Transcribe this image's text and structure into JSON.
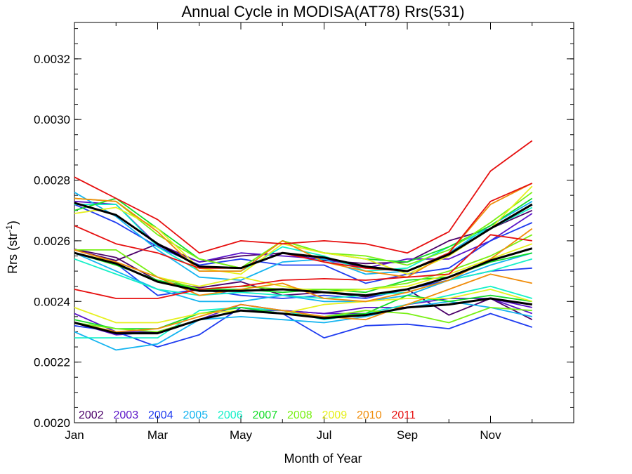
{
  "chart_data": {
    "type": "line",
    "title": "Annual Cycle in MODISA(AT78) Rrs(531)",
    "xlabel": "Month of Year",
    "ylabel_main": "Rrs (str",
    "ylabel_sup": "-1",
    "ylabel_close": ")",
    "xlim": [
      1,
      13
    ],
    "ylim": [
      0.002,
      0.00332
    ],
    "x_ticks": [
      {
        "value": 1,
        "label": "Jan"
      },
      {
        "value": 3,
        "label": "Mar"
      },
      {
        "value": 5,
        "label": "May"
      },
      {
        "value": 7,
        "label": "Jul"
      },
      {
        "value": 9,
        "label": "Sep"
      },
      {
        "value": 11,
        "label": "Nov"
      }
    ],
    "y_ticks": [
      {
        "value": 0.002,
        "label": "0.0020"
      },
      {
        "value": 0.0022,
        "label": "0.0022"
      },
      {
        "value": 0.0024,
        "label": "0.0024"
      },
      {
        "value": 0.0026,
        "label": "0.0026"
      },
      {
        "value": 0.0028,
        "label": "0.0028"
      },
      {
        "value": 0.003,
        "label": "0.0030"
      },
      {
        "value": 0.0032,
        "label": "0.0032"
      }
    ],
    "x": [
      1,
      2,
      3,
      4,
      5,
      6,
      7,
      8,
      9,
      10,
      11,
      12
    ],
    "legend": [
      {
        "label": "2002",
        "color": "#4b0069"
      },
      {
        "label": "2003",
        "color": "#5a14c8"
      },
      {
        "label": "2004",
        "color": "#1f3cf0"
      },
      {
        "label": "2005",
        "color": "#14b4f0"
      },
      {
        "label": "2006",
        "color": "#14f0c8"
      },
      {
        "label": "2007",
        "color": "#14dc28"
      },
      {
        "label": "2008",
        "color": "#78f014"
      },
      {
        "label": "2009",
        "color": "#e6f01e"
      },
      {
        "label": "2010",
        "color": "#f08c0a"
      },
      {
        "label": "2011",
        "color": "#e60f0f"
      }
    ],
    "series": [
      {
        "color": "#4b0069",
        "values": [
          0.002572,
          0.002545,
          0.002468,
          0.002445,
          0.002465,
          0.00242,
          0.00243,
          0.002415,
          0.00244,
          0.002355,
          0.00241,
          0.00234
        ]
      },
      {
        "color": "#4b0069",
        "values": [
          0.00257,
          0.002535,
          0.00259,
          0.00253,
          0.00255,
          0.00256,
          0.002535,
          0.002525,
          0.00253,
          0.0026,
          0.00264,
          0.0027
        ]
      },
      {
        "color": "#5a14c8",
        "values": [
          0.00236,
          0.0023,
          0.0023,
          0.00234,
          0.00237,
          0.00237,
          0.00236,
          0.00236,
          0.00239,
          0.00241,
          0.00241,
          0.00236
        ]
      },
      {
        "color": "#5a14c8",
        "values": [
          0.00273,
          0.00272,
          0.002585,
          0.00253,
          0.00256,
          0.00255,
          0.00254,
          0.00251,
          0.00254,
          0.00254,
          0.0026,
          0.00269
        ]
      },
      {
        "color": "#5a14c8",
        "values": [
          0.00233,
          0.00229,
          0.0023,
          0.00234,
          0.00239,
          0.00237,
          0.00236,
          0.00238,
          0.00238,
          0.00239,
          0.00241,
          0.00238
        ]
      },
      {
        "color": "#1f3cf0",
        "values": [
          0.00232,
          0.0023,
          0.00225,
          0.00229,
          0.00238,
          0.00236,
          0.00228,
          0.00232,
          0.002325,
          0.00231,
          0.00236,
          0.002315
        ]
      },
      {
        "color": "#1f3cf0",
        "values": [
          0.00256,
          0.002525,
          0.00242,
          0.00244,
          0.00242,
          0.00241,
          0.00242,
          0.00241,
          0.00244,
          0.00247,
          0.0025,
          0.00251
        ]
      },
      {
        "color": "#1f3cf0",
        "values": [
          0.00272,
          0.00266,
          0.00258,
          0.00252,
          0.00254,
          0.00252,
          0.00252,
          0.00246,
          0.00249,
          0.00251,
          0.0026,
          0.00266
        ]
      },
      {
        "color": "#14b4f0",
        "values": [
          0.0023,
          0.00224,
          0.00226,
          0.00234,
          0.00235,
          0.00234,
          0.00233,
          0.00235,
          0.00238,
          0.0024,
          0.00238,
          0.00235
        ]
      },
      {
        "color": "#14b4f0",
        "values": [
          0.00256,
          0.0025,
          0.00244,
          0.0024,
          0.0024,
          0.00242,
          0.0024,
          0.0024,
          0.00242,
          0.00247,
          0.00252,
          0.00256
        ]
      },
      {
        "color": "#14b4f0",
        "values": [
          0.00276,
          0.00268,
          0.00257,
          0.00248,
          0.00247,
          0.00253,
          0.00254,
          0.00249,
          0.0025,
          0.00256,
          0.00265,
          0.00273
        ]
      },
      {
        "color": "#14f0c8",
        "values": [
          0.00228,
          0.00228,
          0.00228,
          0.00237,
          0.00238,
          0.00237,
          0.00234,
          0.00236,
          0.00239,
          0.00242,
          0.00245,
          0.00241
        ]
      },
      {
        "color": "#14f0c8",
        "values": [
          0.00254,
          0.00249,
          0.00244,
          0.00242,
          0.00243,
          0.00242,
          0.00241,
          0.00242,
          0.00243,
          0.00247,
          0.0025,
          0.00254
        ]
      },
      {
        "color": "#14f0c8",
        "values": [
          0.00272,
          0.00272,
          0.00258,
          0.0025,
          0.0025,
          0.00258,
          0.00255,
          0.0025,
          0.00251,
          0.00258,
          0.00264,
          0.00271
        ]
      },
      {
        "color": "#14dc28",
        "values": [
          0.00234,
          0.00231,
          0.00231,
          0.00236,
          0.00238,
          0.00236,
          0.00235,
          0.00236,
          0.00242,
          0.0024,
          0.00242,
          0.0024
        ]
      },
      {
        "color": "#14dc28",
        "values": [
          0.00256,
          0.00252,
          0.00247,
          0.00244,
          0.00244,
          0.00243,
          0.00244,
          0.00243,
          0.00247,
          0.00248,
          0.00253,
          0.00256
        ]
      },
      {
        "color": "#14dc28",
        "values": [
          0.0027,
          0.00274,
          0.00264,
          0.00254,
          0.00251,
          0.0026,
          0.00256,
          0.00254,
          0.00253,
          0.00258,
          0.00265,
          0.00274
        ]
      },
      {
        "color": "#78f014",
        "values": [
          0.00233,
          0.00231,
          0.0023,
          0.00234,
          0.00237,
          0.00236,
          0.00235,
          0.00237,
          0.00236,
          0.00233,
          0.00238,
          0.00237
        ]
      },
      {
        "color": "#78f014",
        "values": [
          0.00257,
          0.00257,
          0.00248,
          0.00244,
          0.00245,
          0.00244,
          0.00244,
          0.00244,
          0.00246,
          0.0025,
          0.00255,
          0.00262
        ]
      },
      {
        "color": "#78f014",
        "values": [
          0.00274,
          0.00273,
          0.00262,
          0.00254,
          0.00251,
          0.0026,
          0.00256,
          0.00255,
          0.00252,
          0.00257,
          0.00266,
          0.00276
        ]
      },
      {
        "color": "#e6f01e",
        "values": [
          0.00238,
          0.00233,
          0.00233,
          0.00236,
          0.00237,
          0.00236,
          0.00239,
          0.0024,
          0.00241,
          0.00241,
          0.00244,
          0.0024
        ]
      },
      {
        "color": "#e6f01e",
        "values": [
          0.00256,
          0.00253,
          0.00248,
          0.00245,
          0.00248,
          0.00245,
          0.00243,
          0.00244,
          0.00245,
          0.00249,
          0.00254,
          0.00259
        ]
      },
      {
        "color": "#e6f01e",
        "values": [
          0.00269,
          0.00271,
          0.00264,
          0.00251,
          0.00249,
          0.00259,
          0.00256,
          0.00254,
          0.00249,
          0.00255,
          0.00264,
          0.00278
        ]
      },
      {
        "color": "#f08c0a",
        "values": [
          0.00233,
          0.0023,
          0.00231,
          0.00235,
          0.00239,
          0.00237,
          0.00235,
          0.00234,
          0.00239,
          0.00244,
          0.00249,
          0.00246
        ]
      },
      {
        "color": "#f08c0a",
        "values": [
          0.00257,
          0.00253,
          0.00248,
          0.00242,
          0.00244,
          0.00246,
          0.00241,
          0.0024,
          0.00243,
          0.00247,
          0.00254,
          0.00264
        ]
      },
      {
        "color": "#f08c0a",
        "values": [
          0.00274,
          0.00273,
          0.00263,
          0.0025,
          0.0025,
          0.0026,
          0.00253,
          0.0025,
          0.00248,
          0.00256,
          0.00272,
          0.00279
        ]
      },
      {
        "color": "#e60f0f",
        "values": [
          0.00244,
          0.00241,
          0.00241,
          0.00244,
          0.00245,
          0.00247,
          0.002475,
          0.00247,
          0.00248,
          0.00249,
          0.00262,
          0.0026
        ]
      },
      {
        "color": "#e60f0f",
        "values": [
          0.00265,
          0.00259,
          0.00256,
          0.00251,
          0.00251,
          0.00256,
          0.00253,
          0.00251,
          0.0025,
          0.00256,
          0.00273,
          0.00279
        ]
      },
      {
        "color": "#e60f0f",
        "values": [
          0.00281,
          0.00274,
          0.00267,
          0.00256,
          0.0026,
          0.00259,
          0.0026,
          0.00259,
          0.00256,
          0.00263,
          0.00283,
          0.00293
        ]
      },
      {
        "color": "#000000",
        "bold": true,
        "values": [
          0.00233,
          0.002295,
          0.002295,
          0.00234,
          0.00237,
          0.00236,
          0.002345,
          0.002355,
          0.00238,
          0.00239,
          0.00241,
          0.00239
        ]
      },
      {
        "color": "#000000",
        "bold": true,
        "values": [
          0.00256,
          0.002525,
          0.002465,
          0.002435,
          0.002435,
          0.00244,
          0.00243,
          0.00242,
          0.00244,
          0.00248,
          0.002535,
          0.002575
        ]
      },
      {
        "color": "#000000",
        "bold": true,
        "values": [
          0.002725,
          0.002685,
          0.00259,
          0.002515,
          0.00251,
          0.00256,
          0.002545,
          0.002515,
          0.0025,
          0.002555,
          0.00264,
          0.00272
        ]
      }
    ]
  }
}
